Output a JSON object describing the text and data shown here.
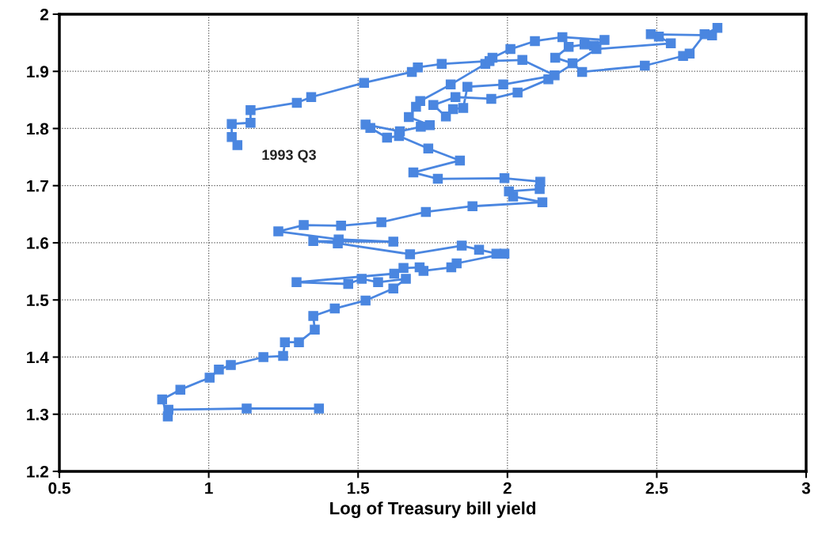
{
  "chart_data": {
    "type": "line",
    "xlabel": "Log of Treasury bill yield",
    "xlim": [
      0.5,
      3
    ],
    "ylim": [
      1.2,
      2
    ],
    "xticks": [
      0.5,
      1,
      1.5,
      2,
      2.5,
      3
    ],
    "yticks": [
      1.2,
      1.3,
      1.4,
      1.5,
      1.6,
      1.7,
      1.8,
      1.9,
      2
    ],
    "grid": true,
    "marker": "square",
    "line_style": "solid",
    "annotations": [
      {
        "text": "1993 Q3",
        "x": 1.096,
        "y": 1.771
      }
    ],
    "series": [
      {
        "color": "#4a86e0",
        "x": [
          1.369,
          1.127,
          0.865,
          0.863,
          0.844,
          0.905,
          1.003,
          1.034,
          1.074,
          1.183,
          1.249,
          1.255,
          1.302,
          1.355,
          1.35,
          1.422,
          1.525,
          1.618,
          1.66,
          1.567,
          1.512,
          1.467,
          1.294,
          1.621,
          1.652,
          1.706,
          1.719,
          1.812,
          1.83,
          1.99,
          1.963,
          1.905,
          1.847,
          1.674,
          1.432,
          1.35,
          1.618,
          1.435,
          1.233,
          1.318,
          1.443,
          1.578,
          1.727,
          1.883,
          2.117,
          2.019,
          2.005,
          2.108,
          2.11,
          1.99,
          1.767,
          1.685,
          1.841,
          1.735,
          1.637,
          1.597,
          1.541,
          1.525,
          1.64,
          1.71,
          1.74,
          1.67,
          1.694,
          1.708,
          1.81,
          1.926,
          1.95,
          2.01,
          2.092,
          2.184,
          2.325,
          2.29,
          2.258,
          2.205,
          2.16,
          2.218,
          2.25,
          2.46,
          2.588,
          2.61,
          2.66,
          2.703,
          2.685,
          2.48,
          2.507,
          2.547,
          2.298,
          2.137,
          2.034,
          1.946,
          1.826,
          1.752,
          1.794,
          1.818,
          1.852,
          1.866,
          1.986,
          2.158,
          2.05,
          1.94,
          1.78,
          1.7,
          1.68,
          1.52,
          1.343,
          1.295,
          1.14,
          1.14,
          1.077,
          1.077,
          1.096
        ],
        "values": [
          1.31,
          1.31,
          1.308,
          1.296,
          1.326,
          1.343,
          1.364,
          1.378,
          1.386,
          1.4,
          1.402,
          1.426,
          1.426,
          1.448,
          1.472,
          1.485,
          1.499,
          1.52,
          1.537,
          1.531,
          1.537,
          1.528,
          1.531,
          1.546,
          1.556,
          1.557,
          1.551,
          1.557,
          1.564,
          1.581,
          1.581,
          1.588,
          1.595,
          1.58,
          1.599,
          1.603,
          1.602,
          1.606,
          1.62,
          1.631,
          1.63,
          1.636,
          1.654,
          1.664,
          1.671,
          1.681,
          1.69,
          1.694,
          1.707,
          1.713,
          1.712,
          1.723,
          1.744,
          1.765,
          1.787,
          1.784,
          1.801,
          1.807,
          1.795,
          1.803,
          1.806,
          1.82,
          1.838,
          1.848,
          1.877,
          1.913,
          1.924,
          1.939,
          1.953,
          1.96,
          1.955,
          1.945,
          1.947,
          1.943,
          1.924,
          1.914,
          1.899,
          1.91,
          1.927,
          1.931,
          1.965,
          1.976,
          1.963,
          1.965,
          1.961,
          1.949,
          1.939,
          1.886,
          1.863,
          1.852,
          1.855,
          1.841,
          1.821,
          1.834,
          1.836,
          1.873,
          1.877,
          1.893,
          1.92,
          1.918,
          1.913,
          1.907,
          1.899,
          1.88,
          1.855,
          1.845,
          1.832,
          1.81,
          1.808,
          1.785,
          1.771
        ]
      }
    ]
  }
}
